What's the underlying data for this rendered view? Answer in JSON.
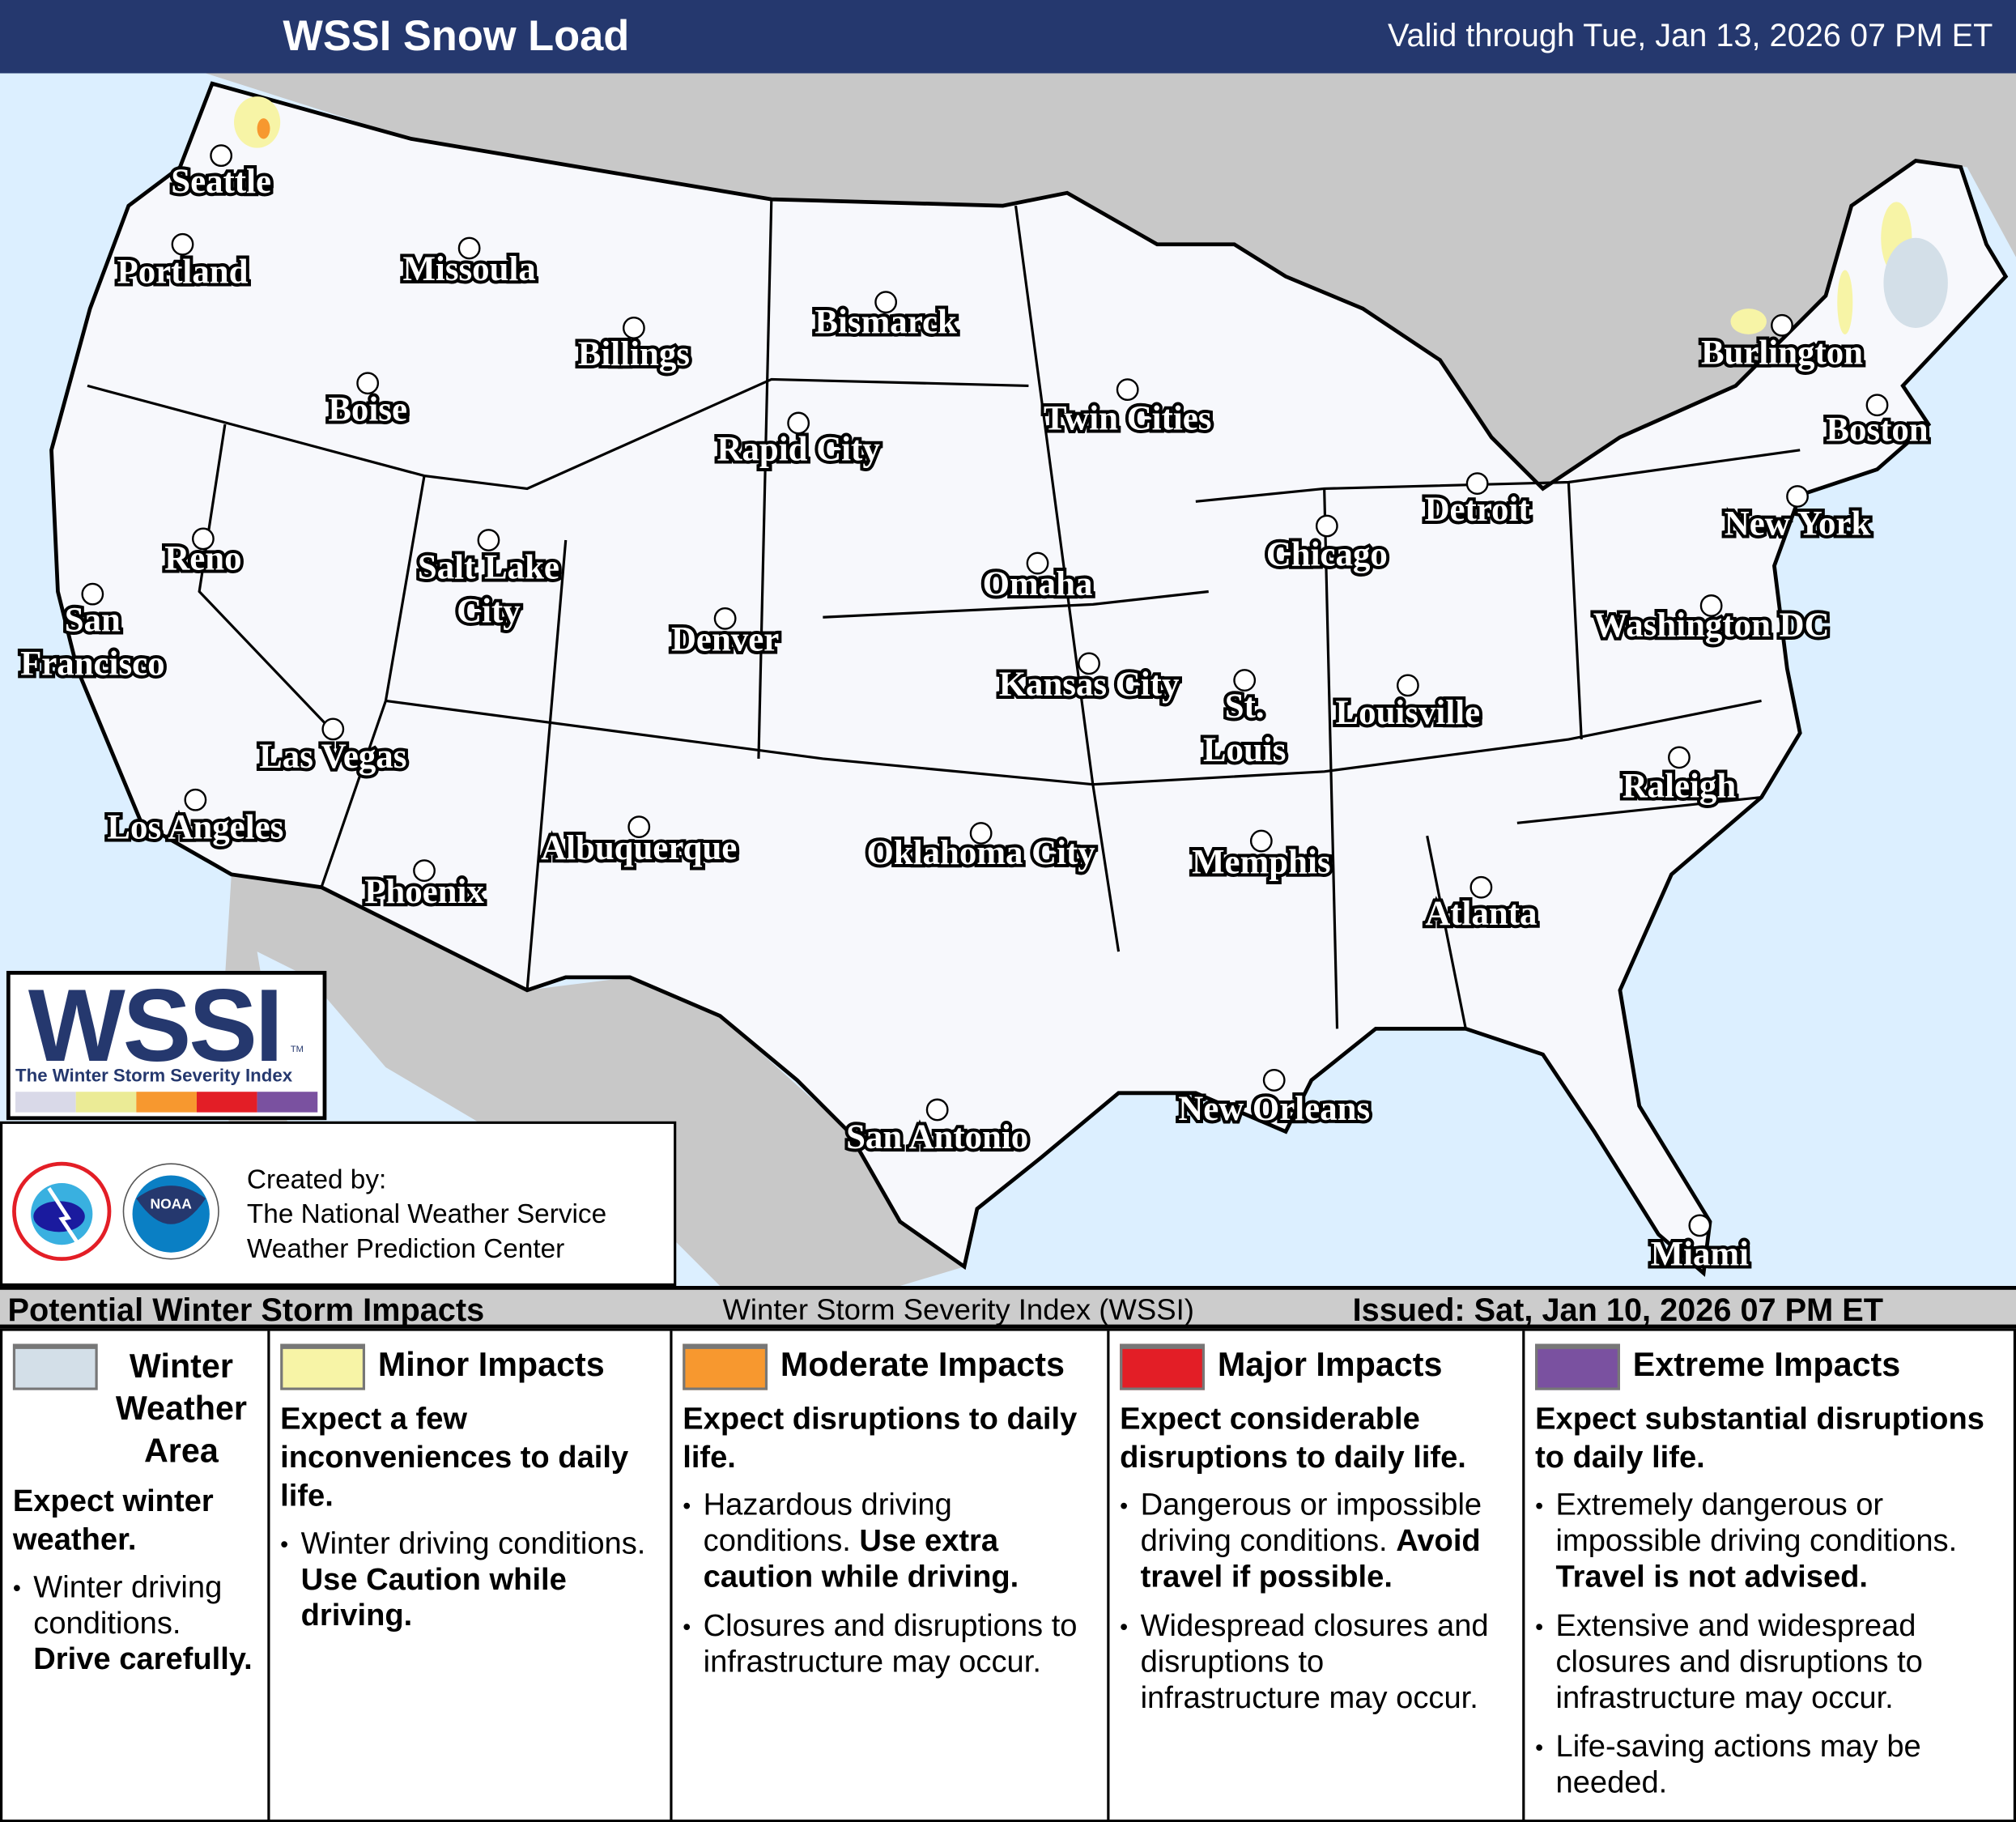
{
  "header": {
    "title": "WSSI Snow Load",
    "valid": "Valid through Tue, Jan 13, 2026 07 PM ET"
  },
  "colors": {
    "header": "#25386e",
    "ocean": "#dcefff",
    "land_outside": "#c8c8c8",
    "us_land": "#f7f8fc",
    "winter": "#d3dfe8",
    "minor": "#f7f4a6",
    "moderate": "#f7982f",
    "major": "#e31e26",
    "extreme": "#7a51a0"
  },
  "map": {
    "cities": [
      "Seattle",
      "Portland",
      "Missoula",
      "Bismarck",
      "Billings",
      "Boise",
      "Twin Cities",
      "Rapid City",
      "Burlington",
      "Boston",
      "Detroit",
      "New York",
      "Reno",
      "Salt Lake City",
      "Chicago",
      "Omaha",
      "San Francisco",
      "Denver",
      "Washington DC",
      "Kansas City",
      "St. Louis",
      "Louisville",
      "Las Vegas",
      "Los Angeles",
      "Raleigh",
      "Albuquerque",
      "Oklahoma City",
      "Memphis",
      "Phoenix",
      "Atlanta",
      "New Orleans",
      "San Antonio",
      "Miami"
    ]
  },
  "logo": {
    "text": "WSSI",
    "tm": "TM",
    "subtitle": "The Winter Storm Severity Index"
  },
  "credit": {
    "line1": "Created by:",
    "line2": "The National Weather Service",
    "line3": "Weather Prediction Center",
    "nws_logo_text": "NATIONAL WEATHER SERVICE",
    "noaa_logo_text": "NOAA"
  },
  "strip": {
    "left": "Potential Winter Storm Impacts",
    "center": "Winter Storm Severity Index (WSSI)",
    "right": "Issued: Sat, Jan 10, 2026 07 PM ET"
  },
  "legend": [
    {
      "label": "Winter Weather Area",
      "color": "#d3dfe8",
      "heading": "Expect winter weather.",
      "bullets": [
        {
          "text": "Winter driving conditions. ",
          "bold": "Drive carefully."
        }
      ]
    },
    {
      "label": "Minor Impacts",
      "color": "#f7f4a6",
      "heading": "Expect a few inconveniences to daily life.",
      "bullets": [
        {
          "text": "Winter driving conditions. ",
          "bold": "Use Caution while driving."
        }
      ]
    },
    {
      "label": "Moderate Impacts",
      "color": "#f7982f",
      "heading": "Expect disruptions to daily life.",
      "bullets": [
        {
          "text": "Hazardous driving conditions. ",
          "bold": "Use extra caution while driving."
        },
        {
          "text": "Closures and disruptions to infrastructure may occur.",
          "bold": ""
        }
      ]
    },
    {
      "label": "Major Impacts",
      "color": "#e31e26",
      "heading": "Expect considerable disruptions to daily life.",
      "bullets": [
        {
          "text": "Dangerous or impossible driving conditions. ",
          "bold": "Avoid travel if possible."
        },
        {
          "text": "Widespread closures and disruptions to infrastructure may occur.",
          "bold": ""
        }
      ]
    },
    {
      "label": "Extreme Impacts",
      "color": "#7a51a0",
      "heading": "Expect substantial disruptions to daily life.",
      "bullets": [
        {
          "text": "Extremely dangerous or impossible driving conditions. ",
          "bold": "Travel is not advised."
        },
        {
          "text": "Extensive and widespread closures and disruptions to infrastructure may occur.",
          "bold": ""
        },
        {
          "text": "Life-saving actions may be needed.",
          "bold": ""
        }
      ]
    }
  ]
}
